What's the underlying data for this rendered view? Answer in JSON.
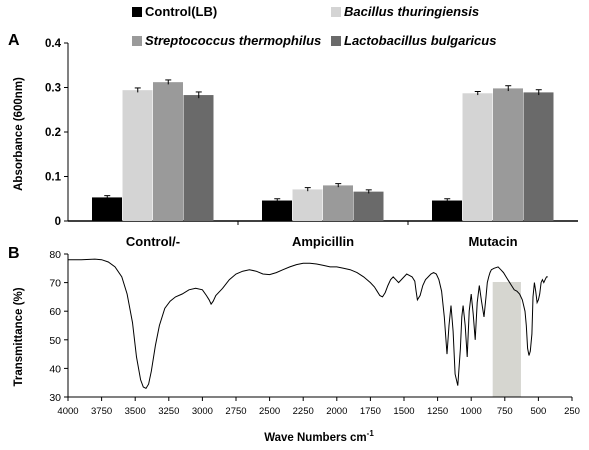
{
  "panel_a_label": "A",
  "panel_b_label": "B",
  "chart_data": [
    {
      "type": "bar",
      "ylabel": "Absorbance (600nm)",
      "ylim": [
        0,
        0.4
      ],
      "yticks": [
        0,
        0.1,
        0.2,
        0.3,
        0.4
      ],
      "ytick_labels": [
        "0",
        "0.1",
        "0.2",
        "0.3",
        "0.4"
      ],
      "categories": [
        "Control/-",
        "Ampicillin",
        "Mutacin"
      ],
      "legend_position": "top",
      "series": [
        {
          "name": "Control(LB)",
          "color": "#000000",
          "values": [
            0.053,
            0.046,
            0.046
          ],
          "errors": [
            0.004,
            0.004,
            0.004
          ],
          "italic": false
        },
        {
          "name": "Bacillus thuringiensis",
          "color": "#d4d4d4",
          "values": [
            0.294,
            0.071,
            0.287
          ],
          "errors": [
            0.005,
            0.004,
            0.004
          ],
          "italic": true
        },
        {
          "name": "Streptococcus thermophilus",
          "color": "#9a9a9a",
          "values": [
            0.312,
            0.08,
            0.298
          ],
          "errors": [
            0.005,
            0.004,
            0.006
          ],
          "italic": true
        },
        {
          "name": "Lactobacillus bulgaricus",
          "color": "#6a6a6a",
          "values": [
            0.283,
            0.066,
            0.289
          ],
          "errors": [
            0.007,
            0.004,
            0.006
          ],
          "italic": true
        }
      ]
    },
    {
      "type": "line",
      "xlabel": "Wave Numbers cm",
      "xlabel_superscript": "-1",
      "ylabel": "Transmittance  (%)",
      "xlim": [
        4000,
        250
      ],
      "ylim": [
        30,
        80
      ],
      "xticks": [
        4000,
        3750,
        3500,
        3250,
        3000,
        2750,
        2500,
        2250,
        2000,
        1750,
        1500,
        1250,
        1000,
        750,
        500,
        250
      ],
      "xtick_labels": [
        "4000",
        "3750",
        "3500",
        "3250",
        "3000",
        "2750",
        "2500",
        "2250",
        "2000",
        "1750",
        "1500",
        "1250",
        "1000",
        "750",
        "500",
        "250"
      ],
      "yticks": [
        30,
        40,
        50,
        60,
        70,
        80
      ],
      "ytick_labels": [
        "30",
        "40",
        "50",
        "60",
        "70",
        "80"
      ],
      "highlight_region": {
        "x_from": 840,
        "x_to": 630,
        "color": "#d6d6d0"
      },
      "series": [
        {
          "color": "#000000",
          "x": [
            4000,
            3900,
            3800,
            3750,
            3700,
            3650,
            3600,
            3560,
            3520,
            3490,
            3460,
            3440,
            3420,
            3400,
            3380,
            3350,
            3320,
            3280,
            3240,
            3200,
            3150,
            3100,
            3050,
            3000,
            2970,
            2950,
            2935,
            2920,
            2900,
            2870,
            2850,
            2800,
            2750,
            2700,
            2650,
            2600,
            2550,
            2500,
            2450,
            2400,
            2350,
            2300,
            2250,
            2200,
            2150,
            2100,
            2050,
            2000,
            1950,
            1900,
            1850,
            1800,
            1750,
            1720,
            1700,
            1680,
            1660,
            1640,
            1620,
            1600,
            1580,
            1560,
            1540,
            1500,
            1480,
            1460,
            1440,
            1420,
            1410,
            1400,
            1380,
            1360,
            1340,
            1320,
            1300,
            1280,
            1260,
            1240,
            1220,
            1200,
            1180,
            1165,
            1150,
            1135,
            1120,
            1100,
            1080,
            1070,
            1060,
            1045,
            1030,
            1015,
            1000,
            985,
            970,
            955,
            940,
            925,
            905,
            890,
            880,
            870,
            860,
            850,
            830,
            800,
            780,
            760,
            740,
            720,
            700,
            680,
            660,
            640,
            620,
            600,
            590,
            580,
            570,
            560,
            548,
            540,
            530,
            520,
            510,
            500,
            490,
            480,
            470,
            460,
            450,
            440,
            430
          ],
          "y": [
            78,
            78,
            78.2,
            78,
            77.2,
            75.5,
            72,
            66,
            56,
            44,
            36,
            33.5,
            33,
            34.5,
            39,
            48,
            55,
            61,
            63.5,
            65,
            66,
            67.5,
            68,
            67.5,
            65.5,
            64,
            62.5,
            63.5,
            65.5,
            67,
            68,
            71,
            73,
            74,
            74.5,
            74,
            73,
            72.8,
            73.5,
            74.5,
            75.5,
            76.3,
            76.8,
            76.8,
            76.5,
            76,
            75.5,
            75.5,
            75,
            74.5,
            73.5,
            72,
            70,
            68.5,
            67,
            65.5,
            65,
            66.5,
            69,
            71,
            72,
            71,
            70,
            72,
            73,
            72.5,
            72,
            70.5,
            67,
            64,
            65.5,
            69,
            71,
            72,
            73,
            73.5,
            73,
            71,
            67,
            58,
            45,
            55,
            62,
            53,
            38,
            34,
            47,
            58,
            62,
            55,
            44,
            60,
            66,
            59,
            50,
            63,
            69,
            64,
            58,
            65,
            70,
            72,
            73.5,
            74.5,
            75,
            75.5,
            74.5,
            73.5,
            72,
            70.5,
            69,
            67.5,
            67,
            66,
            64,
            60,
            55,
            47,
            44.5,
            46,
            52,
            65,
            70,
            67,
            63,
            64,
            66,
            70,
            71,
            70,
            71,
            72,
            72
          ]
        }
      ]
    }
  ]
}
